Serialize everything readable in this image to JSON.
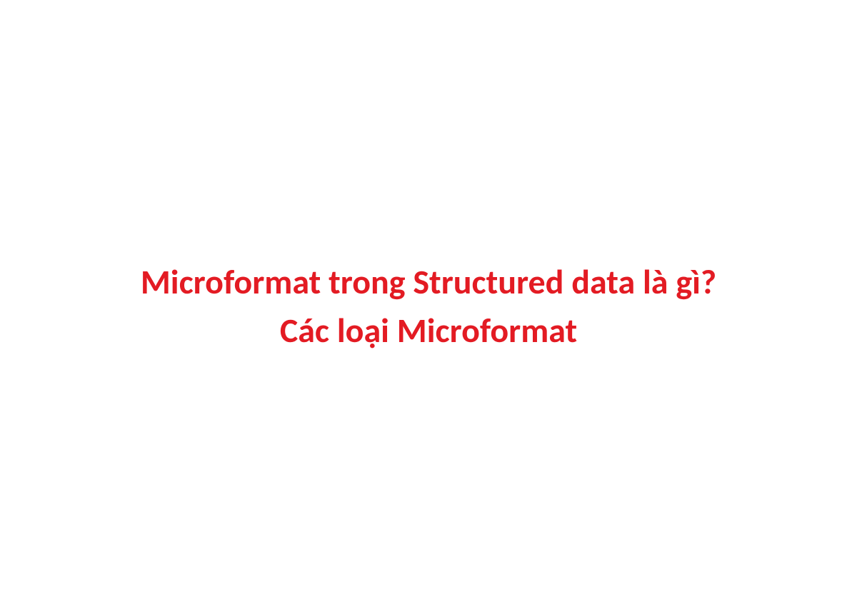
{
  "title": {
    "line1": "Microformat trong Structured data là gì?",
    "line2": "Các loại Microformat",
    "color": "#e31b23",
    "font_size": 48,
    "font_weight": 700,
    "background_color": "#ffffff",
    "text_align": "center"
  }
}
